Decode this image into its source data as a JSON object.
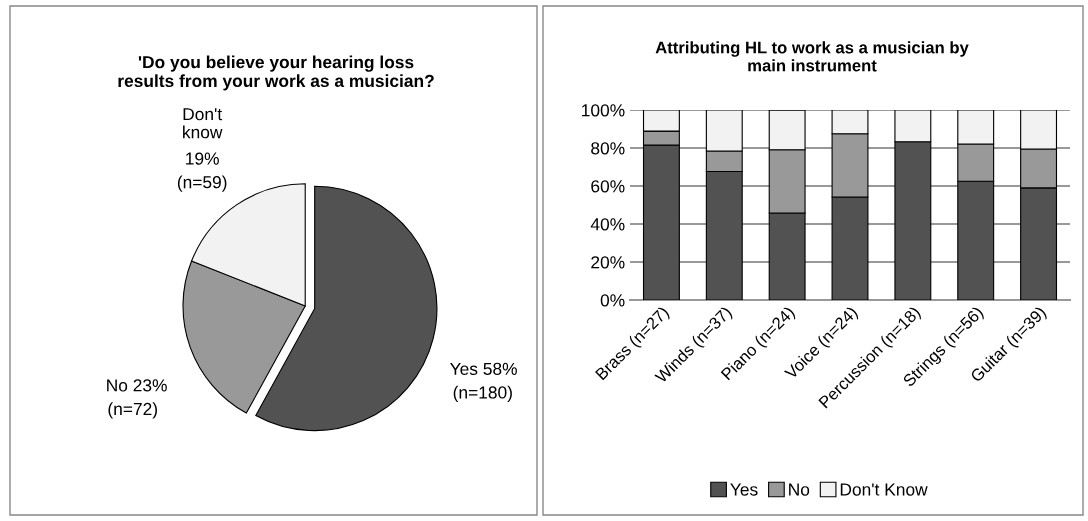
{
  "chart_data": [
    {
      "type": "pie",
      "title": "'Do you believe your hearing loss\nresults from your work as a musician?",
      "categories": [
        "Yes",
        "No",
        "Don't know"
      ],
      "values": [
        58,
        23,
        19
      ],
      "colors": [
        "#525252",
        "#999999",
        "#f2f2f2"
      ],
      "annotations": [
        "(n=180)",
        "(n=72)",
        "(n=59)"
      ],
      "value_labels": [
        "58%",
        "23%",
        "19%"
      ]
    },
    {
      "type": "bar",
      "stacked": true,
      "title": "Attributing HL to work as a musician by\nmain instrument",
      "categories": [
        "Brass (n=27)",
        "Winds (n=37)",
        "Piano (n=24)",
        "Voice (n=24)",
        "Percussion (n=18)",
        "Strings (n=56)",
        "Guitar (n=39)"
      ],
      "series": [
        {
          "name": "Yes",
          "color": "#525252",
          "values": [
            81.5,
            67.6,
            45.8,
            54.2,
            83.3,
            62.5,
            59.0
          ]
        },
        {
          "name": "No",
          "color": "#999999",
          "values": [
            7.4,
            10.8,
            33.3,
            33.3,
            null,
            19.6,
            20.5
          ]
        },
        {
          "name": "Don't Know",
          "color": "#f2f2f2",
          "values": [
            11.1,
            21.6,
            20.8,
            12.5,
            16.7,
            17.9,
            20.5
          ]
        }
      ],
      "ylim": [
        0,
        100
      ],
      "yticks": [
        {
          "value": 0,
          "label": "0%"
        },
        {
          "value": 20,
          "label": "20%"
        },
        {
          "value": 40,
          "label": "40%"
        },
        {
          "value": 60,
          "label": "60%"
        },
        {
          "value": 80,
          "label": "80%"
        },
        {
          "value": 100,
          "label": "100%"
        }
      ],
      "grid": "y",
      "legend": "bottom"
    }
  ]
}
